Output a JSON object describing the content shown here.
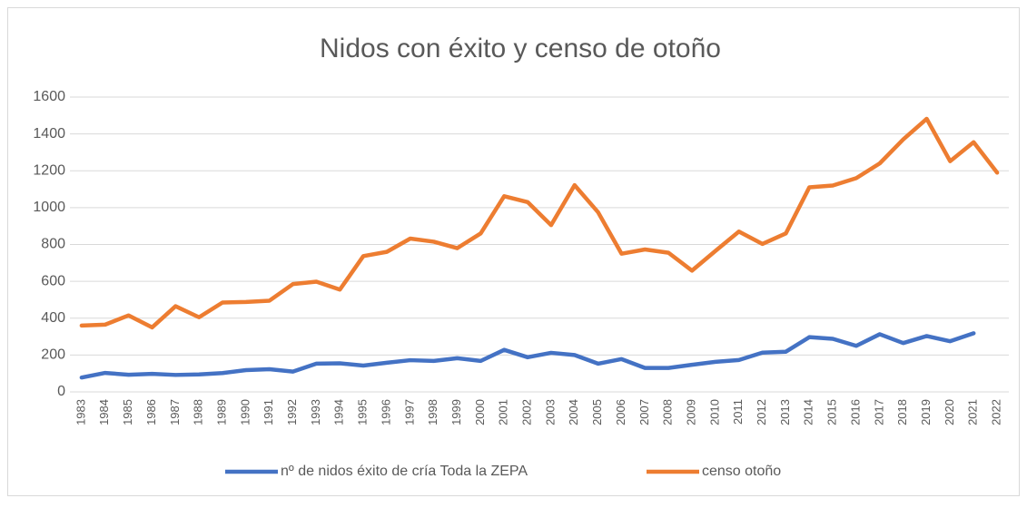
{
  "chart_data": {
    "type": "line",
    "title": "Nidos con éxito y censo de otoño",
    "categories": [
      "1983",
      "1984",
      "1985",
      "1986",
      "1987",
      "1988",
      "1989",
      "1990",
      "1991",
      "1992",
      "1993",
      "1994",
      "1995",
      "1996",
      "1997",
      "1998",
      "1999",
      "2000",
      "2001",
      "2002",
      "2003",
      "2004",
      "2005",
      "2006",
      "2007",
      "2008",
      "2009",
      "2010",
      "2011",
      "2012",
      "2013",
      "2014",
      "2015",
      "2016",
      "2017",
      "2018",
      "2019",
      "2020",
      "2021",
      "2022"
    ],
    "series": [
      {
        "name": "nº de nidos éxito de cría Toda la ZEPA",
        "color": "#4472c4",
        "values": [
          78,
          103,
          93,
          98,
          92,
          95,
          102,
          118,
          123,
          110,
          153,
          155,
          143,
          158,
          172,
          168,
          183,
          168,
          228,
          188,
          212,
          200,
          153,
          178,
          130,
          130,
          147,
          163,
          173,
          213,
          218,
          297,
          288,
          250,
          313,
          265,
          303,
          275,
          318,
          null
        ]
      },
      {
        "name": "censo otoño",
        "color": "#ed7d31",
        "values": [
          360,
          365,
          415,
          350,
          465,
          405,
          485,
          488,
          495,
          585,
          598,
          555,
          737,
          760,
          832,
          815,
          780,
          860,
          1062,
          1030,
          905,
          1122,
          975,
          750,
          773,
          755,
          658,
          765,
          870,
          803,
          860,
          1110,
          1120,
          1160,
          1240,
          1370,
          1482,
          1252,
          1355,
          1190
        ]
      }
    ],
    "ylim": [
      0,
      1600
    ],
    "yticks": [
      0,
      200,
      400,
      600,
      800,
      1000,
      1200,
      1400,
      1600
    ],
    "grid": true,
    "legend": "bottom"
  }
}
